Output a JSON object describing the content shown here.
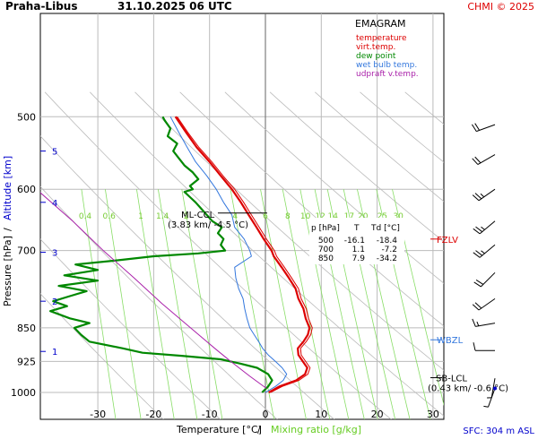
{
  "header": {
    "station": "Praha-Libus",
    "datetime": "31.10.2025 06 UTC",
    "credit": "CHMI © 2025"
  },
  "colors": {
    "temperature": "#dd0000",
    "virt_temp": "#dd0000",
    "dew_point": "#008800",
    "wet_bulb": "#3377dd",
    "updraft": "#aa22aa",
    "mixing_ratio": "#88dd66",
    "dry_adiabat": "#bbbbbb",
    "grid": "#bbbbbb",
    "blue_text": "#0000cc"
  },
  "legend": {
    "title": "EMAGRAM",
    "items": [
      {
        "label": "temperature",
        "color": "#dd0000"
      },
      {
        "label": "virt.temp.",
        "color": "#dd0000"
      },
      {
        "label": "dew point",
        "color": "#008800"
      },
      {
        "label": "wet bulb temp.",
        "color": "#3377dd"
      },
      {
        "label": "udpraft v.temp.",
        "color": "#aa22aa"
      }
    ]
  },
  "table": {
    "headers": [
      "p [hPa]",
      "T",
      "Td [°C]"
    ],
    "rows": [
      [
        "500",
        "-16.1",
        "-18.4"
      ],
      [
        "700",
        "1.1",
        "-7.2"
      ],
      [
        "850",
        "7.9",
        "-34.2"
      ]
    ]
  },
  "annotations": {
    "ml_ccl": "ML-CCL",
    "ml_ccl_value": "(3.83 km/ -4.5 °C)",
    "sb_lcl": "SB-LCL",
    "sb_lcl_value": "(0.43 km/ -0.6 °C)",
    "fzlv": "FZLV",
    "wbzl": "WBZL",
    "sfc": "SFC: 304 m ASL"
  },
  "axes": {
    "xlabel_temp": "Temperature [°C]",
    "xlabel_sep": "/",
    "xlabel_mix": "Mixing ratio [g/kg]",
    "ylabel_p": "Pressure [hPa]",
    "ylabel_sep": "/",
    "ylabel_alt": "Altitude [km]"
  },
  "chart_data": {
    "type": "line",
    "title": "Praha-Libus 31.10.2025 06 UTC",
    "subtitle": "EMAGRAM",
    "xlabel": "Temperature [°C] / Mixing ratio [g/kg]",
    "ylabel": "Pressure [hPa] / Altitude [km]",
    "xlim": [
      -41,
      36
    ],
    "ylim": [
      1000,
      500
    ],
    "x_ticks": [
      -30,
      -20,
      -10,
      0,
      10,
      20,
      30
    ],
    "pressure_ticks": [
      500,
      600,
      700,
      850,
      925,
      1000
    ],
    "altitude_ticks": [
      {
        "label": "1",
        "p": 902
      },
      {
        "label": "2",
        "p": 795
      },
      {
        "label": "3",
        "p": 703
      },
      {
        "label": "4",
        "p": 620
      },
      {
        "label": "5",
        "p": 545
      }
    ],
    "mixing_ratio_labels": [
      "0.4",
      "0.6",
      "1",
      "1.4",
      "2",
      "4",
      "6",
      "8",
      "10",
      "12",
      "14",
      "17",
      "20",
      "25",
      "30"
    ],
    "mixing_ratio_values": [
      0.4,
      0.6,
      1,
      1.4,
      2,
      4,
      6,
      8,
      10,
      12,
      14,
      17,
      20,
      25,
      30
    ],
    "grid": true,
    "series": [
      {
        "name": "temperature",
        "points": [
          [
            1000,
            0.6
          ],
          [
            985,
            2.5
          ],
          [
            970,
            5.5
          ],
          [
            955,
            7.1
          ],
          [
            940,
            7.5
          ],
          [
            925,
            6.7
          ],
          [
            910,
            5.9
          ],
          [
            895,
            5.8
          ],
          [
            880,
            6.8
          ],
          [
            865,
            7.6
          ],
          [
            850,
            7.9
          ],
          [
            830,
            7.2
          ],
          [
            810,
            6.8
          ],
          [
            790,
            5.9
          ],
          [
            770,
            5.4
          ],
          [
            750,
            4.2
          ],
          [
            730,
            2.9
          ],
          [
            710,
            1.5
          ],
          [
            700,
            1.1
          ],
          [
            680,
            -0.3
          ],
          [
            660,
            -1.6
          ],
          [
            640,
            -3.0
          ],
          [
            620,
            -4.4
          ],
          [
            600,
            -6.0
          ],
          [
            580,
            -8.0
          ],
          [
            560,
            -10.0
          ],
          [
            540,
            -12.3
          ],
          [
            520,
            -14.2
          ],
          [
            500,
            -16.1
          ]
        ]
      },
      {
        "name": "virt.temp.",
        "points": [
          [
            1000,
            0.9
          ],
          [
            985,
            3.0
          ],
          [
            970,
            6.0
          ],
          [
            955,
            7.6
          ],
          [
            940,
            8.0
          ],
          [
            925,
            7.2
          ],
          [
            910,
            6.4
          ],
          [
            895,
            6.3
          ],
          [
            880,
            7.3
          ],
          [
            865,
            8.1
          ],
          [
            850,
            8.4
          ],
          [
            830,
            7.7
          ],
          [
            810,
            7.3
          ],
          [
            790,
            6.4
          ],
          [
            770,
            5.9
          ],
          [
            750,
            4.7
          ],
          [
            730,
            3.4
          ],
          [
            710,
            2.0
          ],
          [
            700,
            1.6
          ],
          [
            680,
            0.2
          ],
          [
            660,
            -1.1
          ],
          [
            640,
            -2.5
          ],
          [
            620,
            -3.9
          ],
          [
            600,
            -5.5
          ],
          [
            580,
            -7.6
          ],
          [
            560,
            -9.6
          ],
          [
            540,
            -11.9
          ],
          [
            520,
            -13.9
          ],
          [
            500,
            -15.8
          ]
        ]
      },
      {
        "name": "dew point",
        "points": [
          [
            1000,
            -0.6
          ],
          [
            985,
            0.5
          ],
          [
            970,
            1.2
          ],
          [
            955,
            0.5
          ],
          [
            940,
            -1.5
          ],
          [
            930,
            -4.5
          ],
          [
            920,
            -8.0
          ],
          [
            912,
            -15.0
          ],
          [
            905,
            -22.0
          ],
          [
            895,
            -25.5
          ],
          [
            880,
            -31.5
          ],
          [
            865,
            -33.0
          ],
          [
            850,
            -34.2
          ],
          [
            840,
            -31.5
          ],
          [
            830,
            -35.0
          ],
          [
            815,
            -38.5
          ],
          [
            805,
            -35.5
          ],
          [
            795,
            -38.0
          ],
          [
            785,
            -35.0
          ],
          [
            775,
            -32.0
          ],
          [
            765,
            -37.0
          ],
          [
            755,
            -30.0
          ],
          [
            745,
            -36.0
          ],
          [
            735,
            -30.0
          ],
          [
            725,
            -34.0
          ],
          [
            718,
            -27.0
          ],
          [
            710,
            -20.0
          ],
          [
            705,
            -12.0
          ],
          [
            700,
            -7.2
          ],
          [
            690,
            -8.0
          ],
          [
            680,
            -7.5
          ],
          [
            670,
            -8.5
          ],
          [
            660,
            -7.8
          ],
          [
            650,
            -9.5
          ],
          [
            640,
            -10.5
          ],
          [
            630,
            -11.5
          ],
          [
            620,
            -12.5
          ],
          [
            612,
            -13.5
          ],
          [
            604,
            -14.5
          ],
          [
            600,
            -13.0
          ],
          [
            595,
            -13.5
          ],
          [
            585,
            -12.0
          ],
          [
            575,
            -13.0
          ],
          [
            565,
            -14.5
          ],
          [
            555,
            -15.5
          ],
          [
            545,
            -16.5
          ],
          [
            535,
            -15.8
          ],
          [
            525,
            -17.5
          ],
          [
            515,
            -17.0
          ],
          [
            505,
            -18.0
          ],
          [
            500,
            -18.4
          ]
        ]
      },
      {
        "name": "wet bulb temp.",
        "points": [
          [
            1000,
            0.0
          ],
          [
            985,
            1.8
          ],
          [
            970,
            3.2
          ],
          [
            955,
            3.8
          ],
          [
            940,
            3.0
          ],
          [
            925,
            1.8
          ],
          [
            910,
            0.5
          ],
          [
            895,
            -0.5
          ],
          [
            880,
            -1.2
          ],
          [
            865,
            -2.0
          ],
          [
            850,
            -2.8
          ],
          [
            830,
            -3.3
          ],
          [
            810,
            -3.7
          ],
          [
            790,
            -4.0
          ],
          [
            770,
            -4.8
          ],
          [
            750,
            -5.3
          ],
          [
            730,
            -5.5
          ],
          [
            710,
            -2.5
          ],
          [
            700,
            -2.8
          ],
          [
            680,
            -3.8
          ],
          [
            660,
            -5.5
          ],
          [
            640,
            -6.0
          ],
          [
            620,
            -7.5
          ],
          [
            600,
            -8.8
          ],
          [
            580,
            -10.5
          ],
          [
            560,
            -12.5
          ],
          [
            540,
            -14.0
          ],
          [
            520,
            -15.5
          ],
          [
            500,
            -17.0
          ]
        ]
      },
      {
        "name": "udpraft v.temp.",
        "points": [
          [
            990,
            0.2
          ],
          [
            960,
            -2.8
          ],
          [
            925,
            -6.2
          ],
          [
            900,
            -8.6
          ],
          [
            850,
            -13.4
          ],
          [
            800,
            -18.5
          ],
          [
            750,
            -23.5
          ],
          [
            700,
            -29.0
          ],
          [
            650,
            -34.5
          ],
          [
            600,
            -41.0
          ]
        ]
      }
    ],
    "ml_ccl": {
      "p": 637,
      "t": -4.5,
      "altitude_km": 3.83
    },
    "sb_lcl": {
      "p": 990,
      "t": -0.6,
      "altitude_km": 0.43
    },
    "fzlv_p": 680,
    "wbzl_p": 876,
    "wind_barbs": [
      {
        "p": 510,
        "dir": 250,
        "kt": 20
      },
      {
        "p": 550,
        "dir": 240,
        "kt": 20
      },
      {
        "p": 600,
        "dir": 235,
        "kt": 25
      },
      {
        "p": 650,
        "dir": 230,
        "kt": 25
      },
      {
        "p": 690,
        "dir": 230,
        "kt": 25
      },
      {
        "p": 740,
        "dir": 225,
        "kt": 20
      },
      {
        "p": 790,
        "dir": 235,
        "kt": 20
      },
      {
        "p": 840,
        "dir": 260,
        "kt": 15
      },
      {
        "p": 900,
        "dir": 270,
        "kt": 10
      },
      {
        "p": 965,
        "dir": 190,
        "kt": 5
      },
      {
        "p": 990,
        "dir": 200,
        "kt": 5
      }
    ]
  }
}
